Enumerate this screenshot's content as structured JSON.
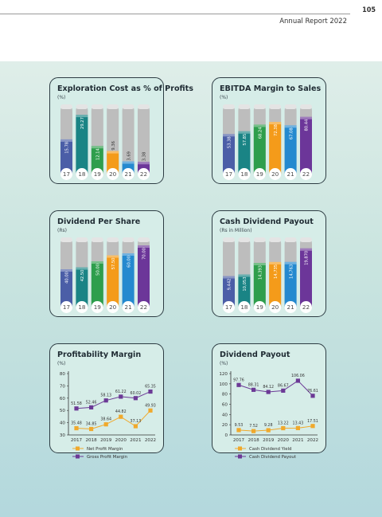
{
  "header": {
    "page_number": "105",
    "report_title": "Annual Report 2022"
  },
  "colors": {
    "year_colors": [
      "#4b5ea7",
      "#1a8485",
      "#2e9e4c",
      "#f49b1a",
      "#2489cf",
      "#6c3699"
    ]
  },
  "chart_data": [
    {
      "id": "exploration",
      "type": "bar",
      "title": "Exploration Cost as % of Profits",
      "subtitle": "(%)",
      "categories": [
        "17",
        "18",
        "19",
        "20",
        "21",
        "22"
      ],
      "values": [
        15.78,
        29.27,
        12.14,
        9.36,
        3.69,
        3.38
      ],
      "labels": [
        "15.78",
        "29.27",
        "12.14",
        "9.36",
        "3.69",
        "3.38"
      ],
      "ylim": [
        0,
        35
      ]
    },
    {
      "id": "ebitda",
      "type": "bar",
      "title": "EBITDA Margin to Sales",
      "subtitle": "(%)",
      "categories": [
        "17",
        "18",
        "19",
        "20",
        "21",
        "22"
      ],
      "values": [
        53.38,
        57.85,
        68.24,
        72.38,
        67.08,
        80.44
      ],
      "labels": [
        "53.38",
        "57.85",
        "68.24",
        "72.38",
        "67.08",
        "80.44"
      ],
      "ylim": [
        0,
        100
      ]
    },
    {
      "id": "dps",
      "type": "bar",
      "title": "Dividend Per Share",
      "subtitle": "(Rs)",
      "categories": [
        "17",
        "18",
        "19",
        "20",
        "21",
        "22"
      ],
      "values": [
        40.0,
        42.5,
        50.0,
        57.5,
        60.0,
        70.0
      ],
      "labels": [
        "40.00",
        "42.50",
        "50.00",
        "57.50",
        "60.00",
        "70.00"
      ],
      "ylim": [
        0,
        80
      ]
    },
    {
      "id": "payout",
      "type": "bar",
      "title": "Cash Dividend Payout",
      "subtitle": "(Rs in Million)",
      "categories": [
        "17",
        "18",
        "19",
        "20",
        "21",
        "22"
      ],
      "values": [
        9442,
        10053,
        14393,
        14735,
        14763,
        19870
      ],
      "labels": [
        "9,442",
        "10,053",
        "14,393",
        "14,735",
        "14,763",
        "19,870"
      ],
      "ylim": [
        0,
        24000
      ]
    },
    {
      "id": "profitability",
      "type": "line",
      "title": "Profitability Margin",
      "subtitle": "(%)",
      "x": [
        "2017",
        "2018",
        "2019",
        "2020",
        "2021",
        "2022"
      ],
      "yticks": [
        "30",
        "40",
        "50",
        "60",
        "70",
        "80"
      ],
      "ylim": [
        30,
        80
      ],
      "series": [
        {
          "name": "Net Profit Margin",
          "color": "#f0a92c",
          "marker": "square",
          "values": [
            35.48,
            34.85,
            38.64,
            44.82,
            37.13,
            49.93
          ],
          "labels": [
            "35.48",
            "34.85",
            "38.64",
            "44.82",
            "37.13",
            "49.93"
          ]
        },
        {
          "name": "Gross Profit Margin",
          "color": "#6c3a96",
          "marker": "square",
          "values": [
            51.58,
            52.46,
            58.13,
            61.22,
            60.02,
            65.35
          ],
          "labels": [
            "51.58",
            "52.46",
            "58.13",
            "61.22",
            "60.02",
            "65.35"
          ]
        }
      ]
    },
    {
      "id": "dividend",
      "type": "line",
      "title": "Dividend Payout",
      "subtitle": "(%)",
      "x": [
        "2017",
        "2018",
        "2019",
        "2020",
        "2021",
        "2022"
      ],
      "yticks": [
        "0",
        "20",
        "40",
        "60",
        "80",
        "100",
        "120"
      ],
      "ylim": [
        0,
        120
      ],
      "series": [
        {
          "name": "Cash Dividend Yield",
          "color": "#f0a92c",
          "marker": "square",
          "values": [
            9.53,
            7.52,
            9.28,
            13.22,
            13.43,
            17.51
          ],
          "labels": [
            "9.53",
            "7.52",
            "9.28",
            "13.22",
            "13.43",
            "17.51"
          ]
        },
        {
          "name": "Cash Dividend Payout",
          "color": "#6c3a96",
          "marker": "square",
          "values": [
            97.76,
            88.31,
            84.12,
            86.67,
            106.06,
            76.61
          ],
          "labels": [
            "97.76",
            "88.31",
            "84.12",
            "86.67",
            "106.06",
            "76.61"
          ]
        }
      ]
    }
  ]
}
